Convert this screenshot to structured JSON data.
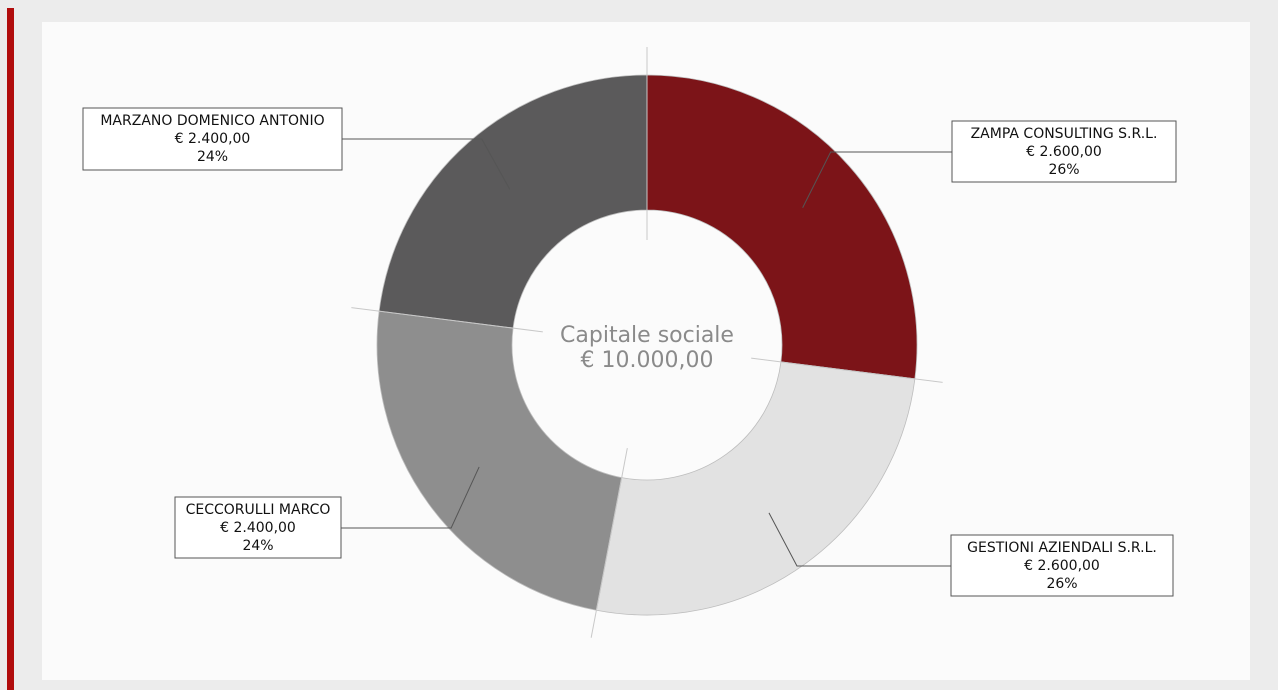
{
  "colors": {
    "accent_bar": "#b10d0d",
    "leader_line": "#555555",
    "label_border": "#555555",
    "center_text": "#8a8a8a"
  },
  "chart_data": {
    "type": "pie",
    "variant": "donut",
    "center_label": [
      "Capitale sociale",
      "€ 10.000,00"
    ],
    "total": 10000,
    "currency": "€",
    "slices": [
      {
        "name": "ZAMPA CONSULTING S.R.L.",
        "value": 2600,
        "value_label": "€ 2.600,00",
        "percent": 26,
        "percent_label": "26%",
        "color": "#7c1418"
      },
      {
        "name": "GESTIONI AZIENDALI S.R.L.",
        "value": 2600,
        "value_label": "€ 2.600,00",
        "percent": 26,
        "percent_label": "26%",
        "color": "#e2e2e2"
      },
      {
        "name": "CECCORULLI MARCO",
        "value": 2400,
        "value_label": "€ 2.400,00",
        "percent": 24,
        "percent_label": "24%",
        "color": "#8e8e8e"
      },
      {
        "name": "MARZANO DOMENICO ANTONIO",
        "value": 2400,
        "value_label": "€ 2.400,00",
        "percent": 24,
        "percent_label": "24%",
        "color": "#5b5a5b"
      }
    ]
  }
}
